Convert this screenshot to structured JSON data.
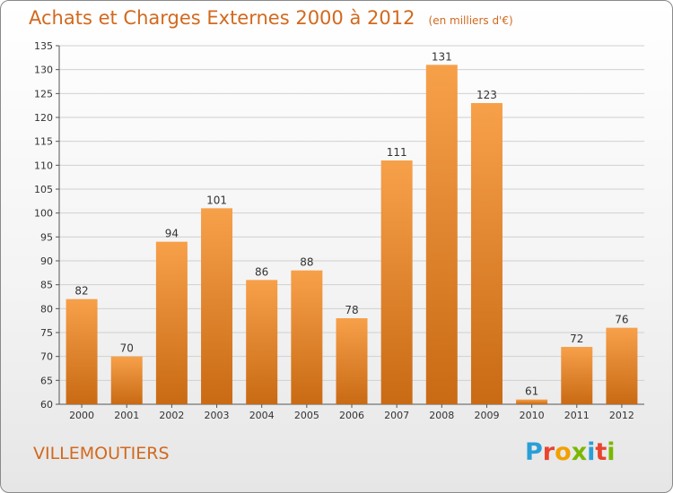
{
  "title": "Achats et Charges Externes 2000 à 2012",
  "subtitle": "(en milliers d'€)",
  "location": "VILLEMOUTIERS",
  "brand": {
    "letters": [
      "P",
      "r",
      "o",
      "x",
      "i",
      "t",
      "i"
    ],
    "colors": [
      "#2a9fd6",
      "#e8442e",
      "#f2a100",
      "#7ab800",
      "#2a9fd6",
      "#e8442e",
      "#7ab800"
    ]
  },
  "colors": {
    "bar_top": "#f7a04a",
    "bar_bottom": "#c96a14",
    "title": "#d2691e",
    "grid": "#d0d0d0"
  },
  "chart_data": {
    "type": "bar",
    "categories": [
      "2000",
      "2001",
      "2002",
      "2003",
      "2004",
      "2005",
      "2006",
      "2007",
      "2008",
      "2009",
      "2010",
      "2011",
      "2012"
    ],
    "values": [
      82,
      70,
      94,
      101,
      86,
      88,
      78,
      111,
      131,
      123,
      61,
      72,
      76
    ],
    "ylim": [
      60,
      135
    ],
    "yticks": [
      60,
      65,
      70,
      75,
      80,
      85,
      90,
      95,
      100,
      105,
      110,
      115,
      120,
      125,
      130,
      135
    ],
    "grid": true,
    "legend": "none"
  }
}
